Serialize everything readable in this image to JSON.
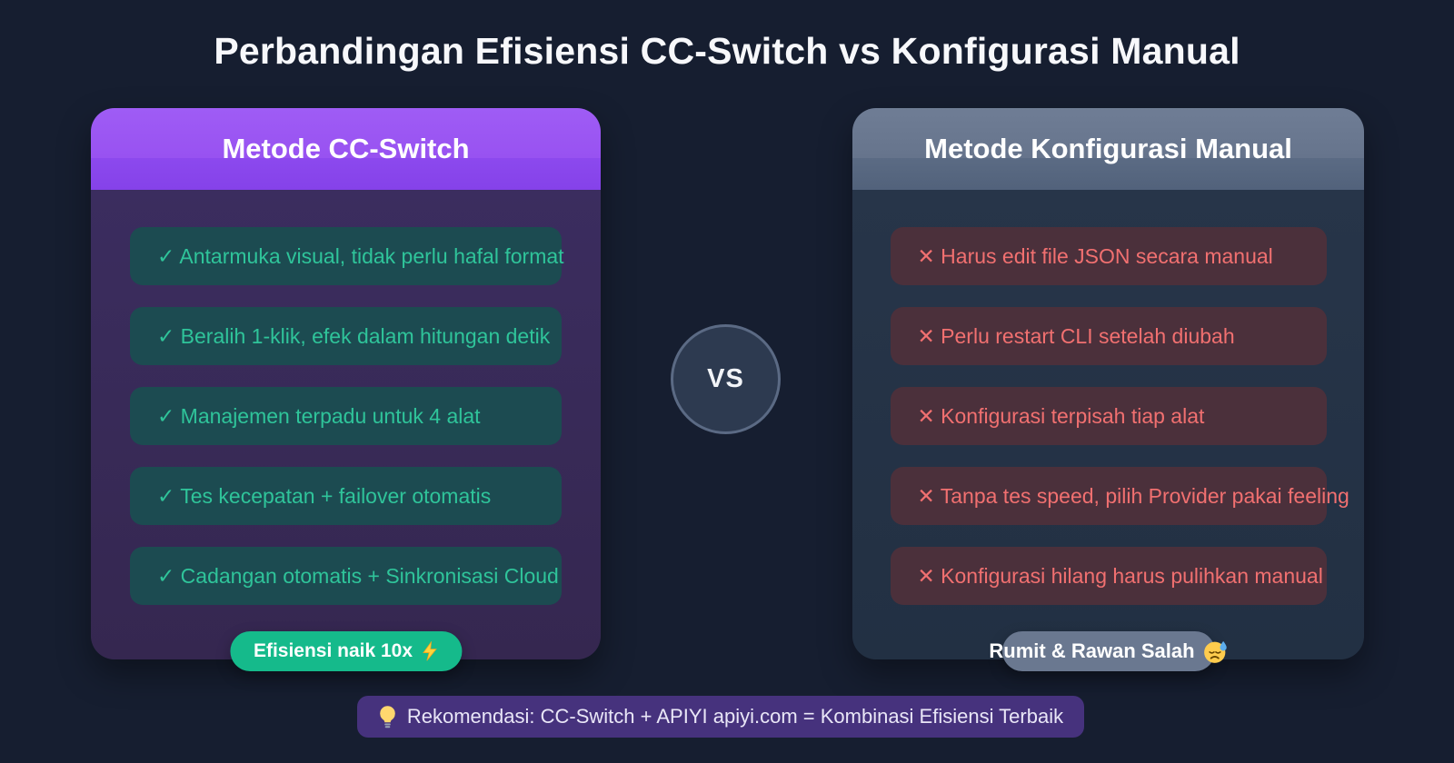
{
  "page": {
    "title": "Perbandingan Efisiensi CC-Switch vs Konfigurasi Manual"
  },
  "left_card": {
    "title": "Metode CC-Switch",
    "items": [
      "✓ Antarmuka visual, tidak perlu hafal format",
      "✓ Beralih 1-klik, efek dalam hitungan detik",
      "✓ Manajemen terpadu untuk 4 alat",
      "✓ Tes kecepatan + failover otomatis",
      "✓ Cadangan otomatis + Sinkronisasi Cloud"
    ],
    "badge": {
      "label": "Efisiensi naik 10x",
      "icon": "lightning-bolt-icon"
    }
  },
  "vs": {
    "label": "VS"
  },
  "right_card": {
    "title": "Metode Konfigurasi Manual",
    "items": [
      "✕ Harus edit file JSON secara manual",
      "✕ Perlu restart CLI setelah diubah",
      "✕ Konfigurasi terpisah tiap alat",
      "✕ Tanpa tes speed, pilih Provider pakai feeling",
      "✕ Konfigurasi hilang harus pulihkan manual"
    ],
    "badge": {
      "label": "Rumit & Rawan Salah",
      "icon": "downcast-sweat-face-icon"
    }
  },
  "recommendation": {
    "icon": "light-bulb-icon",
    "text": "Rekomendasi: CC-Switch + APIYI apiyi.com = Kombinasi Efisiensi Terbaik"
  },
  "colors": {
    "page_background": "#161e30",
    "left_header_purple": "#9552f0",
    "left_body_purple": "#382a58",
    "pro_item_background": "#1c4b51",
    "pro_item_text": "#2fc49a",
    "green_badge": "#15ba8b",
    "right_header_slate": "#60708a",
    "right_body_slate": "#243146",
    "con_item_background": "#4b303b",
    "con_item_text": "#f17070",
    "gray_badge": "#6a7890",
    "vs_circle_fill": "#2d3a50",
    "vs_circle_ring": "#5b6a84",
    "recommend_bar": "#46327d"
  }
}
